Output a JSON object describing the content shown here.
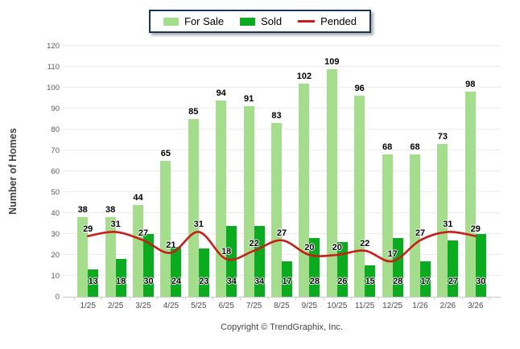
{
  "footer": {
    "copyright": "Copyright © TrendGraphix, Inc."
  },
  "colors": {
    "for_sale": "#A4DE8C",
    "sold": "#0AAB1E",
    "pended": "#C81E19",
    "legend_border": "#17375D",
    "gridline": "#ececec",
    "axis_line": "#c9c9c9",
    "tick_text": "#595959"
  },
  "chart_data": {
    "type": "bar",
    "title": "",
    "categories": [
      "1/25",
      "2/25",
      "3/25",
      "4/25",
      "5/25",
      "6/25",
      "7/25",
      "8/25",
      "9/25",
      "10/25",
      "11/25",
      "12/25",
      "1/26",
      "2/26",
      "3/26"
    ],
    "series": [
      {
        "name": "For Sale",
        "type": "bar",
        "color": "#A4DE8C",
        "values": [
          38,
          38,
          44,
          65,
          85,
          94,
          91,
          83,
          102,
          109,
          96,
          68,
          68,
          73,
          98
        ]
      },
      {
        "name": "Sold",
        "type": "bar",
        "color": "#0AAB1E",
        "values": [
          13,
          18,
          30,
          24,
          23,
          34,
          34,
          17,
          28,
          26,
          15,
          28,
          17,
          27,
          30
        ]
      },
      {
        "name": "Pended",
        "type": "line",
        "color": "#C81E19",
        "values": [
          29,
          31,
          27,
          21,
          31,
          18,
          22,
          27,
          20,
          20,
          22,
          17,
          27,
          31,
          29
        ]
      }
    ],
    "xlabel": "",
    "ylabel": "Number of Homes",
    "ylim": [
      0,
      120
    ],
    "ytick_step": 10,
    "grid": true,
    "legend_position": "top"
  }
}
